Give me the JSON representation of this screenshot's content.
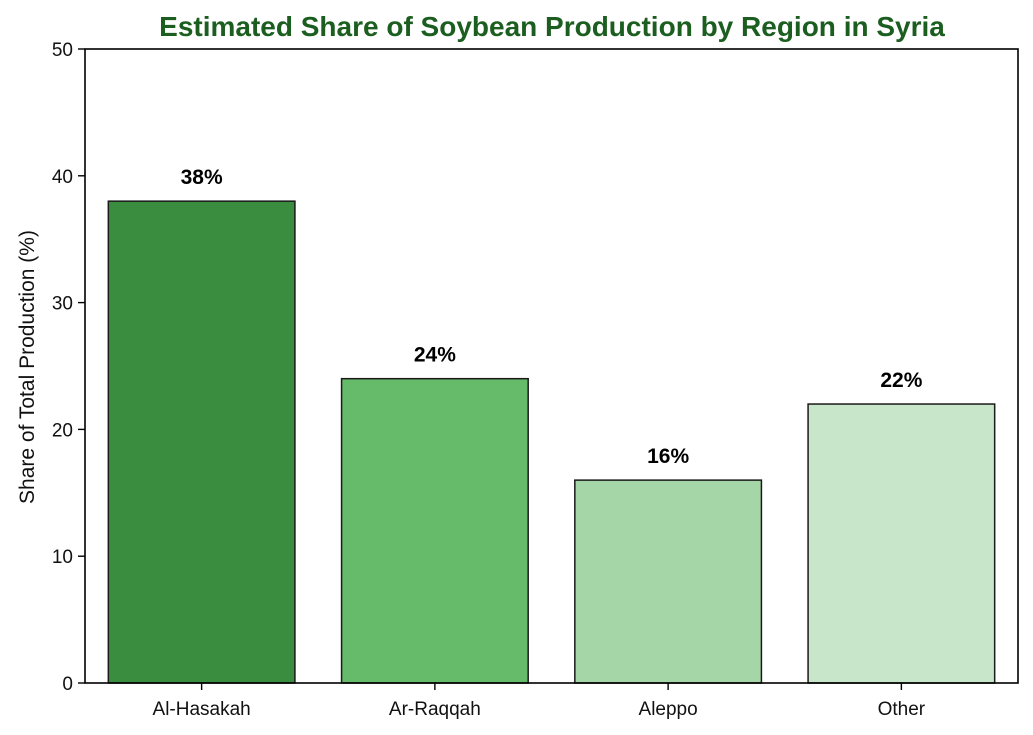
{
  "chart_data": {
    "type": "bar",
    "title": "Estimated Share of Soybean Production by Region in Syria",
    "xlabel": "",
    "ylabel": "Share of Total Production (%)",
    "categories": [
      "Al-Hasakah",
      "Ar-Raqqah",
      "Aleppo",
      "Other"
    ],
    "values": [
      38,
      24,
      16,
      22
    ],
    "data_labels": [
      "38%",
      "24%",
      "16%",
      "22%"
    ],
    "ylim": [
      0,
      50
    ],
    "yticks": [
      0,
      10,
      20,
      30,
      40,
      50
    ],
    "grid": false,
    "legend": "none",
    "bar_colors": [
      "#3a8c3f",
      "#66bb6a",
      "#a5d6a7",
      "#c8e6c9"
    ],
    "bar_edge_color": "#1a1a1a",
    "title_color": "#1b5e20"
  }
}
